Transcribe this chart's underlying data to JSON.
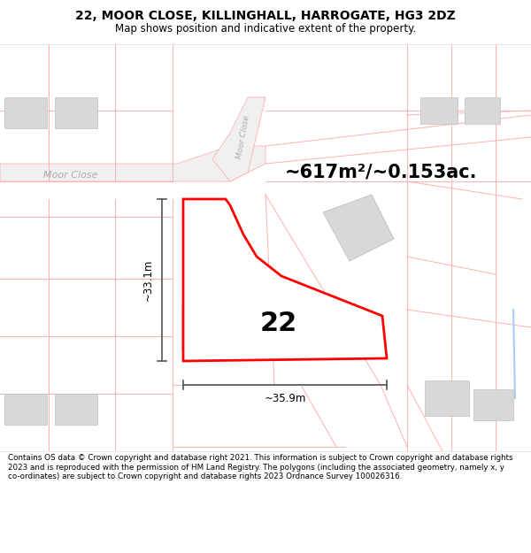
{
  "title_line1": "22, MOOR CLOSE, KILLINGHALL, HARROGATE, HG3 2DZ",
  "title_line2": "Map shows position and indicative extent of the property.",
  "area_label": "~617m²/~0.153ac.",
  "number_label": "22",
  "dim_vertical": "~33.1m",
  "dim_horizontal": "~35.9m",
  "footer_text": "Contains OS data © Crown copyright and database right 2021. This information is subject to Crown copyright and database rights 2023 and is reproduced with the permission of HM Land Registry. The polygons (including the associated geometry, namely x, y co-ordinates) are subject to Crown copyright and database rights 2023 Ordnance Survey 100026316.",
  "bg_color": "#ffffff",
  "plot_edge": "#ff0000",
  "plot_fill": "#ffffff",
  "other_edge": "#ffb0b0",
  "other_fill": "#fff5f5",
  "building_fill": "#d8d8d8",
  "building_edge": "#c0c0c0",
  "dim_color": "#555555",
  "street_label_color": "#aaaaaa",
  "road_fill": "#f0f0f0",
  "header_sep_color": "#dddddd",
  "footer_sep_color": "#dddddd",
  "blue_line_color": "#aaccff"
}
